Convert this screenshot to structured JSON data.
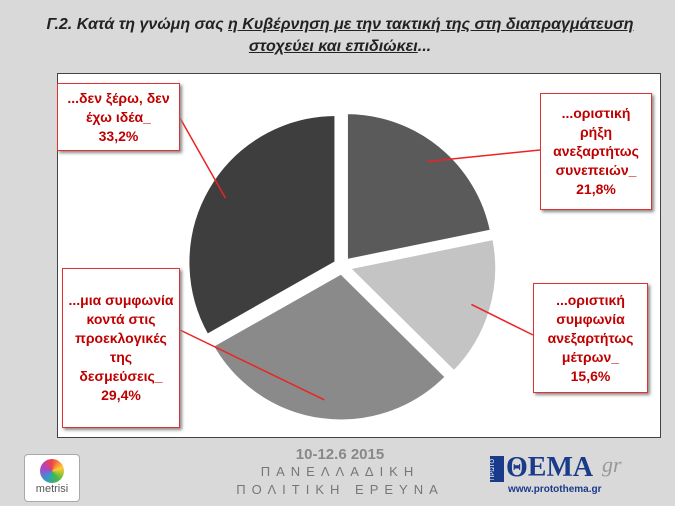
{
  "chart_data": {
    "type": "pie",
    "title_prefix": "Γ.2.  Κατά τη γνώμη σας ",
    "title_underlined": "η Κυβέρνηση με την τακτική της στη διαπραγμάτευση στοχεύει και επιδιώκει",
    "title_suffix": "...",
    "categories": [
      "...οριστική ρήξη ανεξαρτήτως συνεπειών_",
      "...οριστική συμφωνία ανεξαρτήτως μέτρων_",
      "...μια συμφωνία κοντά στις προεκλογικές της δεσμεύσεις_",
      "...δεν ξέρω, δεν έχω ιδέα_"
    ],
    "values": [
      21.8,
      15.6,
      29.4,
      33.2
    ],
    "value_labels": [
      "21,8%",
      "15,6%",
      "29,4%",
      "33,2%"
    ],
    "colors": [
      "#5a5a5a",
      "#c4c4c4",
      "#8a8a8a",
      "#3e3e3e"
    ]
  },
  "footer": {
    "date": "10-12.6 2015",
    "line1": "ΠΑΝΕΛΛΑΔΙΚΗ",
    "line2": "ΠΟΛΙΤΙΚΗ ΕΡΕΥΝΑ",
    "logo_left": "metrisi",
    "logo_right_small": "ΠΡΩΤΟ",
    "logo_right": "ΘΕΜΑ",
    "logo_right_gr": "gr",
    "logo_right_url": "www.protothema.gr"
  }
}
